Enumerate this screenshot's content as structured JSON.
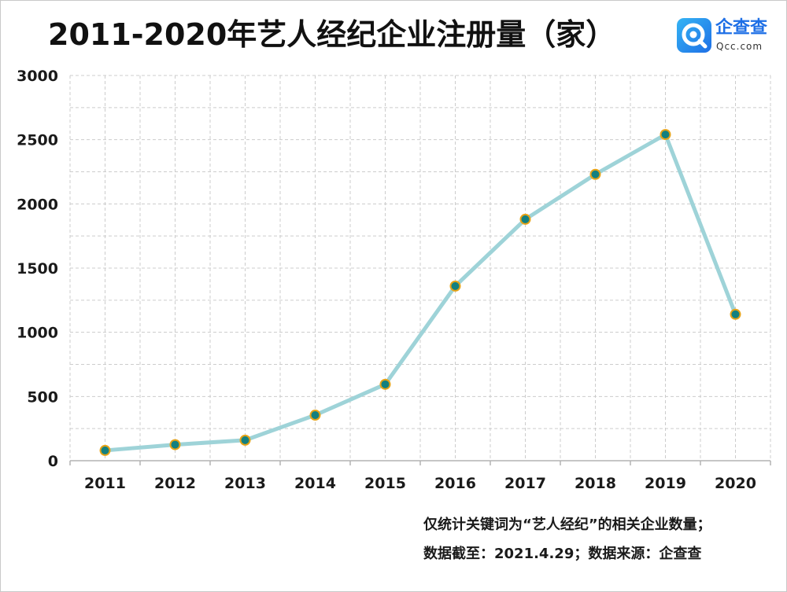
{
  "logo": {
    "icon": "qcc-search-logo-icon",
    "name": "企查查",
    "domain": "Qcc.com"
  },
  "notes": [
    "仅统计关键词为“艺人经纪”的相关企业数量；",
    "数据截至：2021.4.29；数据来源：企查查"
  ],
  "colors": {
    "line": "#9ed3d8",
    "marker_fill": "#13807f",
    "marker_stroke": "#e6a317",
    "grid": "#cccccc",
    "axis": "#b3b3b3",
    "logo_blue": "#1e6fe6"
  },
  "chart_data": {
    "type": "line",
    "title": "2011-2020年艺人经纪企业注册量（家）",
    "xlabel": "",
    "ylabel": "",
    "categories": [
      "2011",
      "2012",
      "2013",
      "2014",
      "2015",
      "2016",
      "2017",
      "2018",
      "2019",
      "2020"
    ],
    "series": [
      {
        "values": [
          80,
          125,
          160,
          355,
          595,
          1360,
          1880,
          2230,
          2540,
          1140
        ]
      }
    ],
    "ylim": [
      0,
      3000
    ],
    "yticks": [
      0,
      500,
      1000,
      1500,
      2000,
      2500,
      3000
    ],
    "grid": true,
    "legend": "none"
  }
}
